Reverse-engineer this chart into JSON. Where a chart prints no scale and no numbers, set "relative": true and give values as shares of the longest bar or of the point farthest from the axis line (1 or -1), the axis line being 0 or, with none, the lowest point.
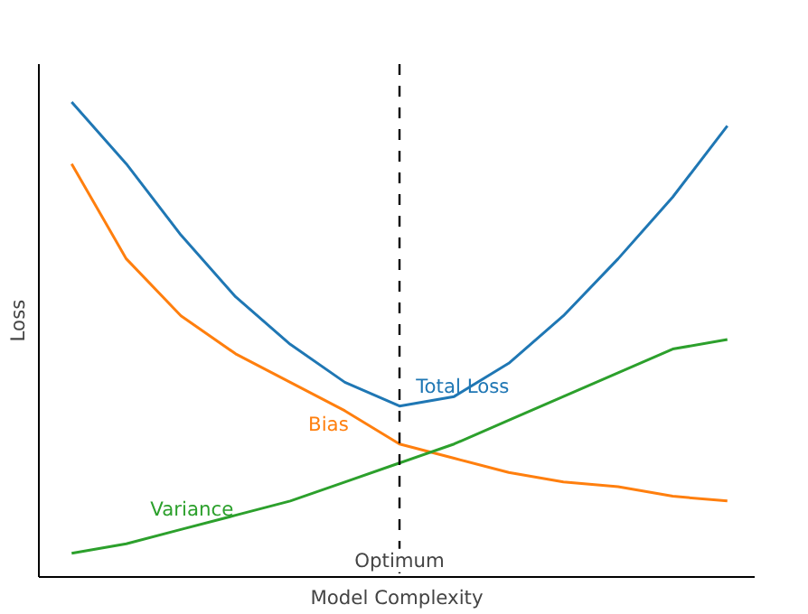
{
  "chart_data": {
    "type": "line",
    "relative": true,
    "xlabel": "Model Complexity",
    "ylabel": "Loss",
    "categories": [
      null,
      null,
      null,
      null,
      null,
      null,
      null,
      null,
      null,
      null,
      null,
      null,
      null
    ],
    "series": [
      {
        "name": "Total Loss",
        "color": "#1f77b4",
        "values": [
          1.0,
          0.87,
          0.72,
          0.59,
          0.49,
          0.41,
          0.36,
          0.38,
          0.45,
          0.55,
          0.67,
          0.8,
          0.95
        ]
      },
      {
        "name": "Bias",
        "color": "#ff7f0e",
        "values": [
          0.87,
          0.67,
          0.55,
          0.47,
          0.41,
          0.35,
          0.28,
          0.25,
          0.22,
          0.2,
          0.19,
          0.17,
          0.16
        ]
      },
      {
        "name": "Variance",
        "color": "#2ca02c",
        "values": [
          0.05,
          0.07,
          0.1,
          0.13,
          0.16,
          0.2,
          0.24,
          0.28,
          0.33,
          0.38,
          0.43,
          0.48,
          0.5
        ]
      }
    ],
    "annotations": [
      "Optimum"
    ],
    "marker": "none",
    "line_style": "solid"
  }
}
